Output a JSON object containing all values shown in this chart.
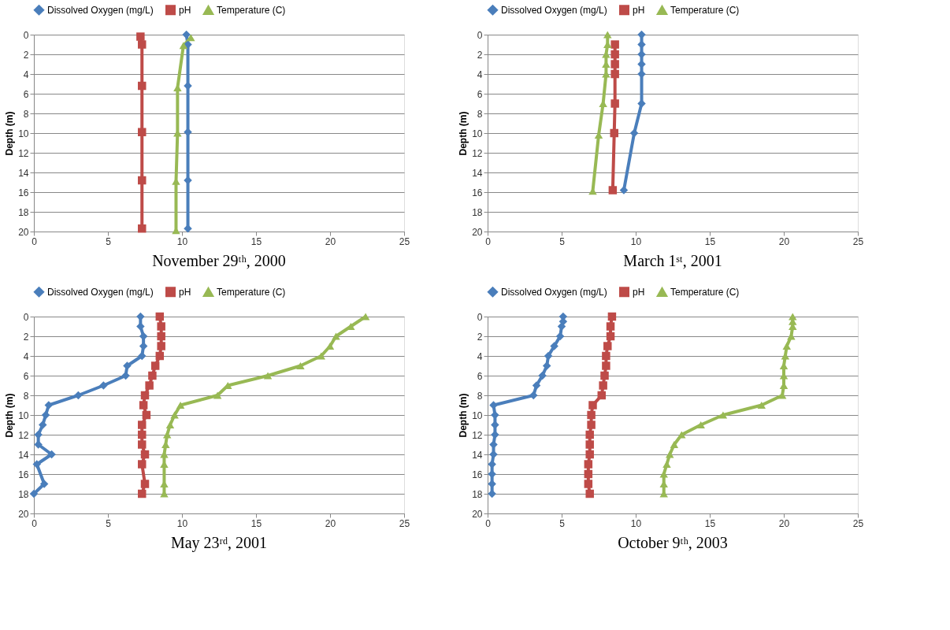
{
  "chart_data": [
    {
      "type": "line",
      "title": "November 29ᵗʰ, 2000",
      "ylabel": "Depth (m)",
      "xlim": [
        0,
        25
      ],
      "xticks": [
        0,
        5,
        10,
        15,
        20,
        25
      ],
      "ylim": [
        20,
        0
      ],
      "yticks": [
        0,
        2,
        4,
        6,
        8,
        10,
        12,
        14,
        16,
        18,
        20
      ],
      "grid": "y",
      "legend": "top",
      "series": [
        {
          "name": "Dissolved Oxygen (mg/L)",
          "color": "#4a7ebb",
          "marker": "diamond",
          "x": [
            10.3,
            10.4,
            10.4,
            10.4,
            10.4,
            10.4
          ],
          "values": [
            0,
            1,
            5.2,
            9.9,
            14.8,
            19.7
          ]
        },
        {
          "name": "pH",
          "color": "#be4b48",
          "marker": "square",
          "x": [
            7.2,
            7.3,
            7.3,
            7.3,
            7.3,
            7.3
          ],
          "values": [
            0.2,
            1,
            5.2,
            9.9,
            14.8,
            19.7
          ]
        },
        {
          "name": "Temperature (C)",
          "color": "#98b954",
          "marker": "triangle",
          "x": [
            10.6,
            10.1,
            9.7,
            9.7,
            9.6,
            9.6
          ],
          "values": [
            0.3,
            1.1,
            5.4,
            10,
            14.9,
            19.9
          ]
        }
      ]
    },
    {
      "type": "line",
      "title": "March 1ˢᵗ, 2001",
      "ylabel": "Depth (m)",
      "xlim": [
        0,
        25
      ],
      "xticks": [
        0,
        5,
        10,
        15,
        20,
        25
      ],
      "ylim": [
        20,
        0
      ],
      "yticks": [
        0,
        2,
        4,
        6,
        8,
        10,
        12,
        14,
        16,
        18,
        20
      ],
      "grid": "y",
      "legend": "top",
      "series": [
        {
          "name": "Dissolved Oxygen (mg/L)",
          "color": "#4a7ebb",
          "marker": "diamond",
          "x": [
            10.4,
            10.4,
            10.4,
            10.4,
            10.4,
            10.4,
            9.9,
            9.2
          ],
          "values": [
            0,
            1,
            2,
            3,
            4,
            7,
            10,
            15.8
          ]
        },
        {
          "name": "pH",
          "color": "#be4b48",
          "marker": "square",
          "x": [
            8.6,
            8.6,
            8.6,
            8.6,
            8.6,
            8.55,
            8.45
          ],
          "values": [
            1,
            2,
            3,
            4,
            7,
            10,
            15.8
          ]
        },
        {
          "name": "Temperature (C)",
          "color": "#98b954",
          "marker": "triangle",
          "x": [
            8.1,
            8.1,
            8.0,
            8.0,
            8.0,
            7.8,
            7.5,
            7.1
          ],
          "values": [
            0,
            1,
            2,
            3,
            4,
            7,
            10.2,
            15.9
          ]
        }
      ]
    },
    {
      "type": "line",
      "title": "May 23ʳᵈ, 2001",
      "ylabel": "Depth (m)",
      "xlim": [
        0,
        25
      ],
      "xticks": [
        0,
        5,
        10,
        15,
        20,
        25
      ],
      "ylim": [
        20,
        0
      ],
      "yticks": [
        0,
        2,
        4,
        6,
        8,
        10,
        12,
        14,
        16,
        18,
        20
      ],
      "grid": "y",
      "legend": "top",
      "series": [
        {
          "name": "Dissolved Oxygen (mg/L)",
          "color": "#4a7ebb",
          "marker": "diamond",
          "x": [
            7.2,
            7.2,
            7.4,
            7.4,
            7.3,
            6.3,
            6.2,
            4.7,
            3.0,
            1.0,
            0.8,
            0.6,
            0.3,
            0.3,
            1.2,
            0.2,
            0.7,
            0.0
          ],
          "values": [
            0,
            1,
            2,
            3,
            4,
            5,
            6,
            7,
            8,
            9,
            10,
            11,
            12,
            13,
            14,
            15,
            17,
            18
          ]
        },
        {
          "name": "pH",
          "color": "#be4b48",
          "marker": "square",
          "x": [
            8.5,
            8.6,
            8.6,
            8.6,
            8.5,
            8.2,
            8.0,
            7.8,
            7.5,
            7.4,
            7.6,
            7.3,
            7.3,
            7.3,
            7.5,
            7.3,
            7.5,
            7.3
          ],
          "values": [
            0,
            1,
            2,
            3,
            4,
            5,
            6,
            7,
            8,
            9,
            10,
            11,
            12,
            13,
            14,
            15,
            17,
            18
          ]
        },
        {
          "name": "Temperature (C)",
          "color": "#98b954",
          "marker": "triangle",
          "x": [
            22.4,
            21.4,
            20.4,
            20.0,
            19.4,
            18.0,
            15.8,
            13.1,
            12.4,
            9.9,
            9.5,
            9.2,
            9.0,
            8.9,
            8.8,
            8.8,
            8.8,
            8.8
          ],
          "values": [
            0,
            1,
            2,
            3,
            4,
            5,
            6,
            7,
            8,
            9,
            10,
            11,
            12,
            13,
            14,
            15,
            17,
            18
          ]
        }
      ]
    },
    {
      "type": "line",
      "title": "October 9ᵗʰ, 2003",
      "ylabel": "Depth (m)",
      "xlim": [
        0,
        25
      ],
      "xticks": [
        0,
        5,
        10,
        15,
        20,
        25
      ],
      "ylim": [
        20,
        0
      ],
      "yticks": [
        0,
        2,
        4,
        6,
        8,
        10,
        12,
        14,
        16,
        18,
        20
      ],
      "grid": "y",
      "legend": "top",
      "series": [
        {
          "name": "Dissolved Oxygen (mg/L)",
          "color": "#4a7ebb",
          "marker": "diamond",
          "x": [
            5.1,
            5.1,
            5.0,
            4.9,
            4.5,
            4.1,
            4.0,
            3.7,
            3.3,
            3.1,
            0.4,
            0.5,
            0.5,
            0.5,
            0.4,
            0.4,
            0.3,
            0.3,
            0.3,
            0.3
          ],
          "values": [
            0,
            0.5,
            1,
            2,
            3,
            4,
            5,
            6,
            7,
            8,
            9,
            10,
            11,
            12,
            13,
            14,
            15,
            16,
            17,
            18
          ]
        },
        {
          "name": "pH",
          "color": "#be4b48",
          "marker": "square",
          "x": [
            8.4,
            8.3,
            8.3,
            8.1,
            8.0,
            8.0,
            7.9,
            7.8,
            7.7,
            7.1,
            7.0,
            7.0,
            6.9,
            6.9,
            6.9,
            6.8,
            6.8,
            6.8,
            6.9
          ],
          "values": [
            0,
            1,
            2,
            3,
            4,
            5,
            6,
            7,
            8,
            9,
            10,
            11,
            12,
            13,
            14,
            15,
            16,
            17,
            18
          ]
        },
        {
          "name": "Temperature (C)",
          "color": "#98b954",
          "marker": "triangle",
          "x": [
            20.6,
            20.6,
            20.6,
            20.5,
            20.2,
            20.1,
            20.0,
            20.0,
            20.0,
            19.9,
            18.5,
            15.9,
            14.4,
            13.1,
            12.6,
            12.3,
            12.1,
            11.9,
            11.9,
            11.9
          ],
          "values": [
            0,
            0.5,
            1,
            2,
            3,
            4,
            5,
            6,
            7,
            8,
            9,
            10,
            11,
            12,
            13,
            14,
            15,
            16,
            17,
            18
          ]
        }
      ]
    }
  ]
}
